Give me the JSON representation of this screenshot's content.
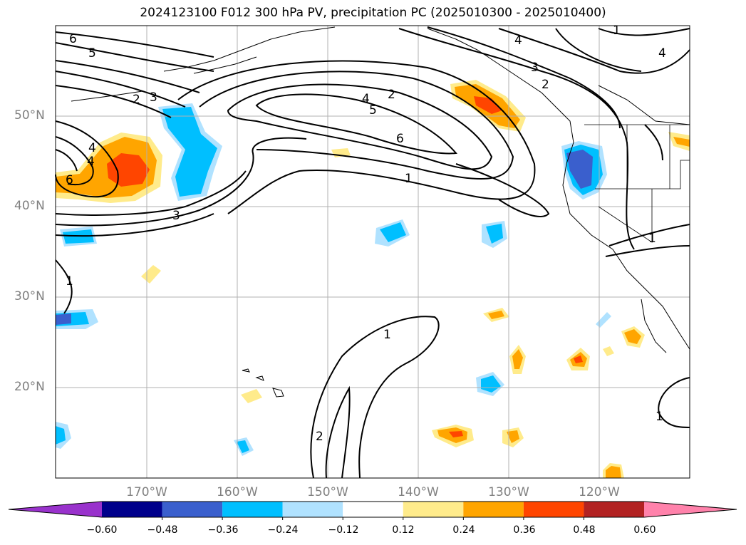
{
  "title": "2024123100 F012 300 hPa PV, precipitation PC (2025010300 - 2025010400)",
  "lat_labels": [
    "50°N",
    "40°N",
    "30°N",
    "20°N"
  ],
  "lon_labels": [
    "170°W",
    "160°W",
    "150°W",
    "140°W",
    "130°W",
    "120°W"
  ],
  "colorbar": {
    "ticks": [
      "−0.60",
      "−0.48",
      "−0.36",
      "−0.24",
      "−0.12",
      "0.12",
      "0.24",
      "0.36",
      "0.48",
      "0.60"
    ],
    "colors": [
      "#9932cc",
      "#00008b",
      "#3a5fcd",
      "#00bfff",
      "#b0e2ff",
      "#ffffff",
      "#ffeb8b",
      "#ffa500",
      "#ff4500",
      "#b22222",
      "#ff82ab"
    ]
  },
  "contour_labels": [
    "6",
    "5",
    "4",
    "2",
    "3",
    "6",
    "4",
    "5",
    "2",
    "6",
    "1",
    "3",
    "1",
    "4",
    "3",
    "2",
    "4",
    "4",
    "1",
    "1",
    "2",
    "1",
    "1"
  ],
  "map_extent": {
    "lon": [
      -180,
      -110
    ],
    "lat": [
      10,
      60
    ]
  },
  "fill_colors": {
    "blue_light": "#b0e2ff",
    "blue": "#00bfff",
    "blue_dark": "#3a5fcd",
    "yellow": "#ffeb8b",
    "orange": "#ffa500",
    "red": "#ff4500"
  }
}
